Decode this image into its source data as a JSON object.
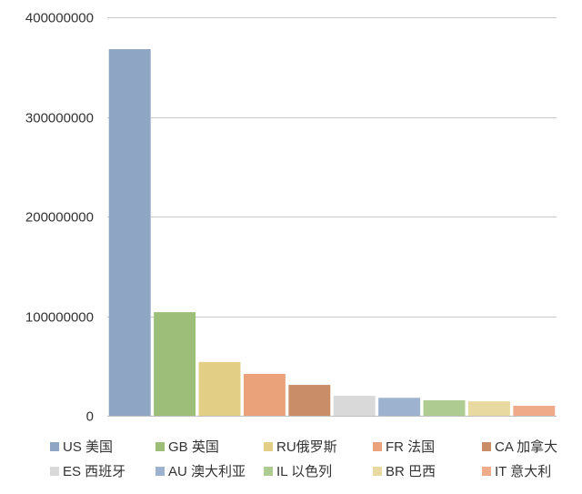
{
  "chart_data": {
    "type": "bar",
    "title": "",
    "xlabel": "",
    "ylabel": "",
    "ylim": [
      0,
      400000000
    ],
    "yticks": [
      0,
      100000000,
      200000000,
      300000000,
      400000000
    ],
    "ytick_labels": [
      "0",
      "100000000",
      "200000000",
      "300000000",
      "400000000"
    ],
    "grid": true,
    "legend_position": "bottom",
    "categories": [
      {
        "label": "US 美国",
        "value": 368000000,
        "color": "#8EA6C4"
      },
      {
        "label": "GB 英国",
        "value": 104000000,
        "color": "#9DBE78"
      },
      {
        "label": "RU俄罗斯",
        "value": 54000000,
        "color": "#E3CE85"
      },
      {
        "label": "FR 法国",
        "value": 42000000,
        "color": "#E9A279"
      },
      {
        "label": "CA 加拿大",
        "value": 31000000,
        "color": "#C98E68"
      },
      {
        "label": "ES 西班牙",
        "value": 20000000,
        "color": "#D9D9D9"
      },
      {
        "label": "AU 澳大利亚",
        "value": 18000000,
        "color": "#9DB2CF"
      },
      {
        "label": "IL 以色列",
        "value": 15500000,
        "color": "#AECB92"
      },
      {
        "label": "BR 巴西",
        "value": 14500000,
        "color": "#E8D9A0"
      },
      {
        "label": "IT 意大利",
        "value": 10000000,
        "color": "#EFAA8A"
      }
    ]
  }
}
